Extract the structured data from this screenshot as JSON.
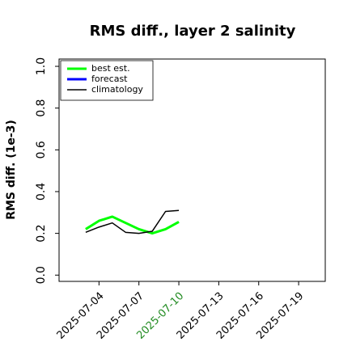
{
  "chart_data": {
    "type": "line",
    "title": "RMS diff., layer 2 salinity",
    "ylabel": "RMS diff. (1e-3)",
    "x": [
      "2025-07-03",
      "2025-07-04",
      "2025-07-05",
      "2025-07-06",
      "2025-07-07",
      "2025-07-08",
      "2025-07-09",
      "2025-07-10"
    ],
    "series": [
      {
        "name": "best est.",
        "color": "#00ff00",
        "width": 3,
        "values": [
          0.22,
          0.26,
          0.28,
          0.25,
          0.22,
          0.2,
          0.22,
          0.255
        ]
      },
      {
        "name": "forecast",
        "color": "#0000ff",
        "width": 3,
        "values": [
          null,
          null,
          null,
          null,
          null,
          null,
          null,
          null
        ]
      },
      {
        "name": "climatology",
        "color": "#000000",
        "width": 1.5,
        "values": [
          0.205,
          0.23,
          0.25,
          0.205,
          0.2,
          0.21,
          0.305,
          0.31
        ]
      }
    ],
    "xlim": [
      "2025-07-01",
      "2025-07-21"
    ],
    "xticks": [
      "2025-07-04",
      "2025-07-07",
      "2025-07-10",
      "2025-07-13",
      "2025-07-16",
      "2025-07-19"
    ],
    "xtick_colors": [
      "#000000",
      "#000000",
      "#228b22",
      "#000000",
      "#000000",
      "#000000"
    ],
    "ylim": [
      -0.03,
      1.035
    ],
    "yticks": [
      {
        "value": 0,
        "label": "0.0"
      },
      {
        "value": 0.2,
        "label": "0.2"
      },
      {
        "value": 0.4,
        "label": "0.4"
      },
      {
        "value": 0.6,
        "label": "0.6"
      },
      {
        "value": 0.8,
        "label": "0.8"
      },
      {
        "value": 1,
        "label": "1.0"
      }
    ],
    "legend": "upper left"
  }
}
